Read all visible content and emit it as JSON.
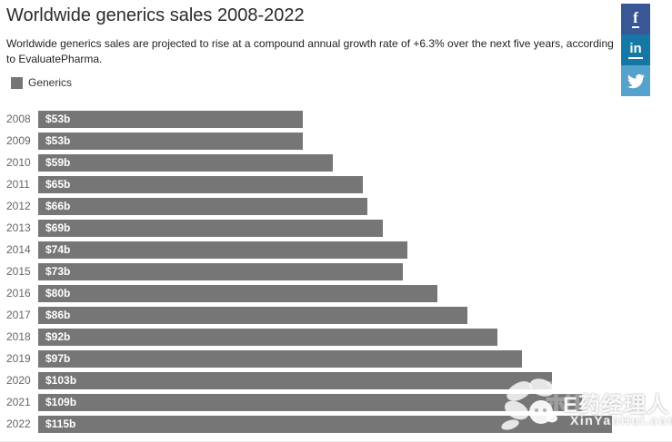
{
  "header": {
    "title": "Worldwide generics sales 2008-2022",
    "subtitle": "Worldwide generics sales are projected to rise at a compound annual growth rate of +6.3% over the next five years, according to EvaluatePharma."
  },
  "legend": {
    "label": "Generics",
    "color": "#767676"
  },
  "social": [
    {
      "name": "facebook",
      "glyph": "f",
      "color": "#3a5795"
    },
    {
      "name": "linkedin",
      "glyph": "in",
      "color": "#1577a5"
    },
    {
      "name": "twitter",
      "glyph": "twitter-bird",
      "color": "#55a2cc"
    }
  ],
  "chart_data": {
    "type": "bar",
    "orientation": "horizontal",
    "title": "Worldwide generics sales 2008-2022",
    "series_name": "Generics",
    "categories": [
      "2008",
      "2009",
      "2010",
      "2011",
      "2012",
      "2013",
      "2014",
      "2015",
      "2016",
      "2017",
      "2018",
      "2019",
      "2020",
      "2021",
      "2022"
    ],
    "values": [
      53,
      53,
      59,
      65,
      66,
      69,
      74,
      73,
      80,
      86,
      92,
      97,
      103,
      109,
      115
    ],
    "value_labels": [
      "$53b",
      "$53b",
      "$59b",
      "$65b",
      "$66b",
      "$69b",
      "$74b",
      "$73b",
      "$80b",
      "$86b",
      "$92b",
      "$97b",
      "$103b",
      "$109b",
      "$115b"
    ],
    "xlim": [
      0,
      127
    ],
    "grid": false,
    "legend_position": "top-left",
    "bar_color": "#767676",
    "label_color": "#ffffff",
    "axis_label_color": "#666666"
  },
  "watermark": {
    "brand": "E药经理人",
    "site": "XinYaoHui.com",
    "faint_text": "新药汇"
  }
}
